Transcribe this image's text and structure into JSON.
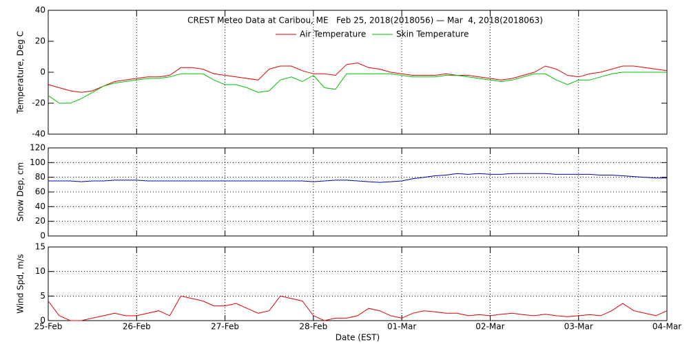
{
  "chart_data": [
    {
      "type": "line",
      "title": "CREST Meteo Data at Caribou, ME   Feb 25, 2018(2018056) — Mar  4, 2018(2018063)",
      "ylabel": "Temperature, Deg C",
      "x": [
        0,
        0.125,
        0.25,
        0.375,
        0.5,
        0.625,
        0.75,
        0.875,
        1,
        1.125,
        1.25,
        1.375,
        1.5,
        1.625,
        1.75,
        1.875,
        2,
        2.125,
        2.25,
        2.375,
        2.5,
        2.625,
        2.75,
        2.875,
        3,
        3.125,
        3.25,
        3.375,
        3.5,
        3.625,
        3.75,
        3.875,
        4,
        4.125,
        4.25,
        4.375,
        4.5,
        4.625,
        4.75,
        4.875,
        5,
        5.125,
        5.25,
        5.375,
        5.5,
        5.625,
        5.75,
        5.875,
        6,
        6.125,
        6.25,
        6.375,
        6.5,
        6.625,
        6.75,
        6.875,
        7
      ],
      "series": [
        {
          "name": "Air Temperature",
          "color": "#e00000",
          "values": [
            -8,
            -10,
            -12,
            -13,
            -12,
            -9,
            -6,
            -5,
            -4,
            -3,
            -3,
            -2,
            3,
            3,
            2,
            -1,
            -2,
            -3,
            -4,
            -5,
            2,
            4,
            4,
            1,
            -1,
            -1,
            -2,
            5,
            6,
            3,
            2,
            0,
            -1,
            -2,
            -2,
            -2,
            -1,
            -2,
            -2,
            -3,
            -4,
            -5,
            -4,
            -2,
            0,
            4,
            2,
            -2,
            -3,
            -1,
            0,
            2,
            4,
            4,
            3,
            2,
            1
          ]
        },
        {
          "name": "Skin Temperature",
          "color": "#00c000",
          "values": [
            -15,
            -20,
            -20,
            -17,
            -13,
            -9,
            -7,
            -6,
            -5,
            -4,
            -4,
            -3,
            -1,
            -1,
            -1,
            -5,
            -8,
            -8,
            -10,
            -13,
            -12,
            -5,
            -3,
            -6,
            -2,
            -10,
            -11,
            -1,
            -1,
            -1,
            -1,
            -1,
            -2,
            -3,
            -3,
            -3,
            -2,
            -2,
            -3,
            -4,
            -5,
            -6,
            -5,
            -3,
            -1,
            -1,
            -5,
            -8,
            -5,
            -5,
            -3,
            -1,
            0,
            0,
            0,
            0,
            0
          ]
        }
      ],
      "xlim": [
        0,
        7
      ],
      "xticks": [
        0,
        1,
        2,
        3,
        4,
        5,
        6,
        7
      ],
      "ylim": [
        -40,
        40
      ],
      "yticks": [
        -40,
        -20,
        0,
        20,
        40
      ],
      "grid": "x"
    },
    {
      "type": "line",
      "ylabel": "Snow Dep, cm",
      "x": [
        0,
        0.125,
        0.25,
        0.375,
        0.5,
        0.625,
        0.75,
        0.875,
        1,
        1.125,
        1.25,
        1.375,
        1.5,
        1.625,
        1.75,
        1.875,
        2,
        2.125,
        2.25,
        2.375,
        2.5,
        2.625,
        2.75,
        2.875,
        3,
        3.125,
        3.25,
        3.375,
        3.5,
        3.625,
        3.75,
        3.875,
        4,
        4.125,
        4.25,
        4.375,
        4.5,
        4.625,
        4.75,
        4.875,
        5,
        5.125,
        5.25,
        5.375,
        5.5,
        5.625,
        5.75,
        5.875,
        6,
        6.125,
        6.25,
        6.375,
        6.5,
        6.625,
        6.75,
        6.875,
        7
      ],
      "series": [
        {
          "color": "#0000a0",
          "values": [
            75,
            75,
            75,
            74,
            75,
            75,
            76,
            76,
            76,
            75,
            75,
            75,
            75,
            75,
            75,
            75,
            75,
            75,
            75,
            75,
            75,
            75,
            75,
            75,
            74,
            75,
            76,
            76,
            75,
            74,
            73,
            74,
            75,
            78,
            80,
            82,
            83,
            85,
            84,
            85,
            84,
            84,
            85,
            85,
            85,
            85,
            84,
            84,
            84,
            84,
            83,
            83,
            82,
            81,
            80,
            79,
            79
          ]
        }
      ],
      "xlim": [
        0,
        7
      ],
      "xticks": [
        0,
        1,
        2,
        3,
        4,
        5,
        6,
        7
      ],
      "ylim": [
        0,
        120
      ],
      "yticks": [
        0,
        20,
        40,
        60,
        80,
        100,
        120
      ],
      "grid": "both"
    },
    {
      "type": "line",
      "ylabel": "Wind Spd, m/s",
      "xlabel": "Date (EST)",
      "x": [
        0,
        0.125,
        0.25,
        0.375,
        0.5,
        0.625,
        0.75,
        0.875,
        1,
        1.125,
        1.25,
        1.375,
        1.5,
        1.625,
        1.75,
        1.875,
        2,
        2.125,
        2.25,
        2.375,
        2.5,
        2.625,
        2.75,
        2.875,
        3,
        3.125,
        3.25,
        3.375,
        3.5,
        3.625,
        3.75,
        3.875,
        4,
        4.125,
        4.25,
        4.375,
        4.5,
        4.625,
        4.75,
        4.875,
        5,
        5.125,
        5.25,
        5.375,
        5.5,
        5.625,
        5.75,
        5.875,
        6,
        6.125,
        6.25,
        6.375,
        6.5,
        6.625,
        6.75,
        6.875,
        7
      ],
      "series": [
        {
          "color": "#e00000",
          "values": [
            4,
            1,
            0,
            0,
            0.5,
            1,
            1.5,
            1,
            1,
            1.5,
            2,
            1,
            5,
            4.5,
            4,
            3,
            3,
            3.5,
            2.5,
            1.5,
            2,
            5,
            4.5,
            4,
            1,
            0,
            0.5,
            0.5,
            1,
            2.5,
            2,
            1,
            0.5,
            1.5,
            2,
            1.8,
            1.5,
            1.5,
            1,
            1.2,
            1,
            1.3,
            1.5,
            1.2,
            1,
            1.3,
            1,
            0.8,
            1,
            1.2,
            1,
            2,
            3.5,
            2,
            1.5,
            1,
            2
          ]
        }
      ],
      "xlim": [
        0,
        7
      ],
      "xticks": [
        {
          "value": 0,
          "label": "25-Feb"
        },
        {
          "value": 1,
          "label": "26-Feb"
        },
        {
          "value": 2,
          "label": "27-Feb"
        },
        {
          "value": 3,
          "label": "28-Feb"
        },
        {
          "value": 4,
          "label": "01-Mar"
        },
        {
          "value": 5,
          "label": "02-Mar"
        },
        {
          "value": 6,
          "label": "03-Mar"
        },
        {
          "value": 7,
          "label": "04-Mar"
        }
      ],
      "ylim": [
        0,
        15
      ],
      "yticks": [
        0,
        5,
        10,
        15
      ],
      "grid": "both"
    }
  ]
}
